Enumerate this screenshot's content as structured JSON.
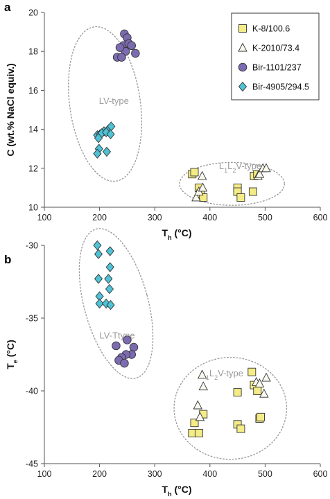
{
  "colors": {
    "square": "#f4ec86",
    "triangle": "#f8f8ee",
    "circle": "#7c6bb0",
    "diamond": "#4fc2d6",
    "region": "#9a9a9a"
  },
  "chart_data": [
    {
      "panel": "a",
      "type": "scatter",
      "xlabel_main": "T",
      "xlabel_sub": "h",
      "xlabel_unit": " (°C)",
      "ylabel": "C (wt.% NaCl equiv.)",
      "xlim": [
        100,
        600
      ],
      "ylim": [
        10,
        20
      ],
      "xticks": [
        "100",
        "200",
        "300",
        "400",
        "500",
        "600"
      ],
      "yticks": [
        "10",
        "12",
        "14",
        "16",
        "18",
        "20"
      ],
      "legend": {
        "position": "top-right",
        "entries": [
          {
            "marker": "square",
            "label": "K-8/100.6"
          },
          {
            "marker": "triangle",
            "label": "K-2010/73.4"
          },
          {
            "marker": "circle",
            "label": "Bir-1101/237"
          },
          {
            "marker": "diamond",
            "label": "Bir-4905/294.5"
          }
        ]
      },
      "regions": [
        {
          "label": "LV-type",
          "center": [
            210,
            15.3
          ],
          "radius": [
            64,
            4.0
          ],
          "rotation_deg": -8,
          "label_at": [
            226,
            15.3
          ]
        },
        {
          "label_parts": [
            "L",
            "1",
            "L",
            "2",
            "V-type"
          ],
          "center": [
            440,
            11.2
          ],
          "radius": [
            95,
            1.1
          ],
          "rotation_deg": 0,
          "label_at": [
            455,
            11.95
          ]
        }
      ],
      "series": [
        {
          "name": "K-8/100.6",
          "marker": "square",
          "points": [
            [
              368,
              11.7
            ],
            [
              372,
              11.8
            ],
            [
              380,
              11.0
            ],
            [
              383,
              10.7
            ],
            [
              388,
              10.5
            ],
            [
              450,
              11.0
            ],
            [
              450,
              10.8
            ],
            [
              456,
              10.5
            ],
            [
              478,
              10.8
            ],
            [
              480,
              11.6
            ],
            [
              486,
              11.7
            ]
          ]
        },
        {
          "name": "K-2010/73.4",
          "marker": "triangle",
          "points": [
            [
              375,
              10.5
            ],
            [
              380,
              10.8
            ],
            [
              386,
              11.6
            ],
            [
              387,
              11.0
            ],
            [
              487,
              11.6
            ],
            [
              490,
              11.7
            ],
            [
              496,
              12.0
            ],
            [
              502,
              12.0
            ]
          ]
        },
        {
          "name": "Bir-1101/237",
          "marker": "circle",
          "points": [
            [
              245,
              18.9
            ],
            [
              250,
              18.7
            ],
            [
              243,
              18.3
            ],
            [
              253,
              18.4
            ],
            [
              258,
              18.3
            ],
            [
              247,
              18.0
            ],
            [
              237,
              18.2
            ],
            [
              265,
              17.9
            ],
            [
              232,
              17.7
            ],
            [
              240,
              17.7
            ]
          ]
        },
        {
          "name": "Bir-4905/294.5",
          "marker": "diamond",
          "points": [
            [
              196,
              13.7
            ],
            [
              201,
              13.75
            ],
            [
              208,
              13.9
            ],
            [
              216,
              14.0
            ],
            [
              221,
              14.15
            ],
            [
              204,
              13.8
            ],
            [
              212,
              13.85
            ],
            [
              220,
              13.75
            ],
            [
              198,
              13.55
            ],
            [
              199,
              13.0
            ],
            [
              213,
              12.85
            ],
            [
              196,
              12.75
            ]
          ]
        }
      ]
    },
    {
      "panel": "b",
      "type": "scatter",
      "xlabel_main": "T",
      "xlabel_sub": "h",
      "xlabel_unit": " (°C)",
      "ylabel_main": "T",
      "ylabel_sub": "e",
      "ylabel_unit": " (°C)",
      "xlim": [
        100,
        600
      ],
      "ylim": [
        -45,
        -30
      ],
      "xticks": [
        "100",
        "200",
        "300",
        "400",
        "500",
        "600"
      ],
      "yticks": [
        "-30",
        "-35",
        "-40",
        "-45"
      ],
      "regions": [
        {
          "label": "LV-Ttype",
          "center": [
            230,
            -34.0
          ],
          "radius": [
            58,
            5.3
          ],
          "rotation_deg": -15,
          "label_at": [
            232,
            -36.4
          ]
        },
        {
          "label_parts": [
            "L",
            "1",
            "L",
            "2",
            "V-type"
          ],
          "center": [
            437,
            -41.2
          ],
          "radius": [
            102,
            3.5
          ],
          "rotation_deg": 0,
          "label_at": [
            422,
            -39.0
          ]
        }
      ],
      "series": [
        {
          "name": "K-8/100.6",
          "marker": "square",
          "points": [
            [
              368,
              -42.9
            ],
            [
              372,
              -42.2
            ],
            [
              380,
              -42.9
            ],
            [
              388,
              -41.6
            ],
            [
              450,
              -40.1
            ],
            [
              450,
              -42.3
            ],
            [
              456,
              -42.6
            ],
            [
              476,
              -38.7
            ],
            [
              480,
              -39.6
            ],
            [
              486,
              -40.0
            ],
            [
              490,
              -41.9
            ],
            [
              492,
              -41.8
            ]
          ]
        },
        {
          "name": "K-2010/73.4",
          "marker": "triangle",
          "points": [
            [
              378,
              -41.0
            ],
            [
              382,
              -41.8
            ],
            [
              386,
              -38.9
            ],
            [
              388,
              -39.7
            ],
            [
              484,
              -39.4
            ],
            [
              490,
              -39.5
            ],
            [
              498,
              -40.2
            ],
            [
              502,
              -39.1
            ]
          ]
        },
        {
          "name": "Bir-1101/237",
          "marker": "circle",
          "points": [
            [
              230,
              -36.9
            ],
            [
              250,
              -36.5
            ],
            [
              262,
              -37.0
            ],
            [
              258,
              -37.5
            ],
            [
              248,
              -37.5
            ],
            [
              240,
              -37.7
            ],
            [
              235,
              -37.9
            ],
            [
              245,
              -38.1
            ]
          ]
        },
        {
          "name": "Bir-4905/294.5",
          "marker": "diamond",
          "points": [
            [
              196,
              -30.0
            ],
            [
              198,
              -30.6
            ],
            [
              219,
              -30.4
            ],
            [
              219,
              -31.5
            ],
            [
              216,
              -32.3
            ],
            [
              198,
              -32.3
            ],
            [
              218,
              -33.0
            ],
            [
              200,
              -33.5
            ],
            [
              200,
              -34.0
            ],
            [
              212,
              -34.0
            ],
            [
              220,
              -34.1
            ]
          ]
        }
      ]
    }
  ]
}
